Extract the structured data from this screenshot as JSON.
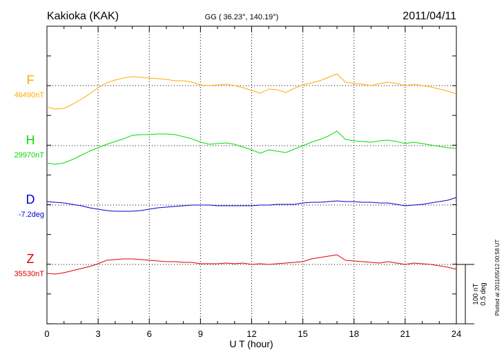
{
  "header": {
    "station": "Kakioka (KAK)",
    "coords": "GG ( 36.23°, 140.19°)",
    "date": "2011/04/11"
  },
  "plotted_note": "Plotted at 2011/05/12 00:58 UT",
  "scale_bar": {
    "nt": "100 nT",
    "deg": "0.5 deg"
  },
  "colors": {
    "F": "#ffaa00",
    "H": "#00dd00",
    "D": "#0000cc",
    "Z": "#dd0000"
  },
  "chart_data": {
    "type": "line",
    "xlabel": "U T (hour)",
    "xlim": [
      0,
      24
    ],
    "xticks": [
      "0",
      "3",
      "6",
      "9",
      "12",
      "15",
      "18",
      "21",
      "24"
    ],
    "series": [
      {
        "name": "F",
        "baseline_label": "46490nT",
        "x": [
          0,
          0.5,
          1,
          1.5,
          2,
          2.5,
          3,
          3.5,
          4,
          4.5,
          5,
          5.5,
          6,
          6.5,
          7,
          7.5,
          8,
          8.5,
          9,
          9.5,
          10,
          10.5,
          11,
          11.5,
          12,
          12.5,
          13,
          13.5,
          14,
          14.5,
          15,
          15.5,
          16,
          16.5,
          17,
          17.5,
          18,
          18.5,
          19,
          19.5,
          20,
          20.5,
          21,
          21.5,
          22,
          22.5,
          23,
          23.5,
          24
        ],
        "y": [
          -31,
          -34,
          -33,
          -27,
          -20,
          -12,
          -3,
          4,
          8,
          11,
          13,
          12,
          11,
          10,
          9,
          7,
          7,
          5,
          1,
          0,
          1,
          2,
          0,
          -3,
          -7,
          -11,
          -5,
          -6,
          -10,
          -4,
          1,
          4,
          7,
          12,
          17,
          5,
          3,
          2,
          0,
          3,
          5,
          3,
          0,
          2,
          0,
          -2,
          -5,
          -8,
          -12
        ]
      },
      {
        "name": "H",
        "baseline_label": "29970nT",
        "x": [
          0,
          0.5,
          1,
          1.5,
          2,
          2.5,
          3,
          3.5,
          4,
          4.5,
          5,
          5.5,
          6,
          6.5,
          7,
          7.5,
          8,
          8.5,
          9,
          9.5,
          10,
          10.5,
          11,
          11.5,
          12,
          12.5,
          13,
          13.5,
          14,
          14.5,
          15,
          15.5,
          16,
          16.5,
          17,
          17.5,
          18,
          18.5,
          19,
          19.5,
          20,
          20.5,
          21,
          21.5,
          22,
          22.5,
          23,
          23.5,
          24
        ],
        "y": [
          -25,
          -27,
          -25,
          -20,
          -14,
          -8,
          -3,
          2,
          6,
          10,
          15,
          16,
          16,
          17,
          17,
          16,
          13,
          10,
          5,
          2,
          3,
          4,
          2,
          -2,
          -6,
          -11,
          -6,
          -8,
          -10,
          -5,
          0,
          5,
          9,
          14,
          21,
          9,
          7,
          6,
          5,
          7,
          8,
          6,
          3,
          5,
          3,
          1,
          -1,
          -3,
          -4
        ]
      },
      {
        "name": "D",
        "baseline_label": "-7.2deg",
        "x": [
          0,
          0.5,
          1,
          1.5,
          2,
          2.5,
          3,
          3.5,
          4,
          4.5,
          5,
          5.5,
          6,
          6.5,
          7,
          7.5,
          8,
          8.5,
          9,
          9.5,
          10,
          10.5,
          11,
          11.5,
          12,
          12.5,
          13,
          13.5,
          14,
          14.5,
          15,
          15.5,
          16,
          16.5,
          17,
          17.5,
          18,
          18.5,
          19,
          19.5,
          20,
          20.5,
          21,
          21.5,
          22,
          22.5,
          23,
          23.5,
          24
        ],
        "y": [
          5,
          4,
          3,
          1,
          -1,
          -4,
          -6,
          -8,
          -9,
          -9,
          -9,
          -8,
          -6,
          -4,
          -3,
          -2,
          -1,
          0,
          0,
          0,
          -1,
          -1,
          -1,
          -1,
          -1,
          0,
          0,
          1,
          1,
          1,
          3,
          4,
          4,
          5,
          6,
          5,
          5,
          4,
          4,
          3,
          3,
          1,
          -1,
          0,
          1,
          3,
          5,
          7,
          11
        ]
      },
      {
        "name": "Z",
        "baseline_label": "35530nT",
        "x": [
          0,
          0.5,
          1,
          1.5,
          2,
          2.5,
          3,
          3.5,
          4,
          4.5,
          5,
          5.5,
          6,
          6.5,
          7,
          7.5,
          8,
          8.5,
          9,
          9.5,
          10,
          10.5,
          11,
          11.5,
          12,
          12.5,
          13,
          13.5,
          14,
          14.5,
          15,
          15.5,
          16,
          16.5,
          17,
          17.5,
          18,
          18.5,
          19,
          19.5,
          20,
          20.5,
          21,
          21.5,
          22,
          22.5,
          23,
          23.5,
          24
        ],
        "y": [
          -13,
          -14,
          -12,
          -9,
          -6,
          -3,
          1,
          6,
          7,
          8,
          8,
          7,
          6,
          5,
          4,
          4,
          3,
          3,
          1,
          1,
          1,
          2,
          1,
          2,
          0,
          1,
          0,
          1,
          2,
          3,
          4,
          8,
          10,
          12,
          14,
          6,
          5,
          4,
          3,
          2,
          4,
          2,
          0,
          2,
          1,
          0,
          -2,
          -4,
          -7
        ]
      }
    ]
  }
}
